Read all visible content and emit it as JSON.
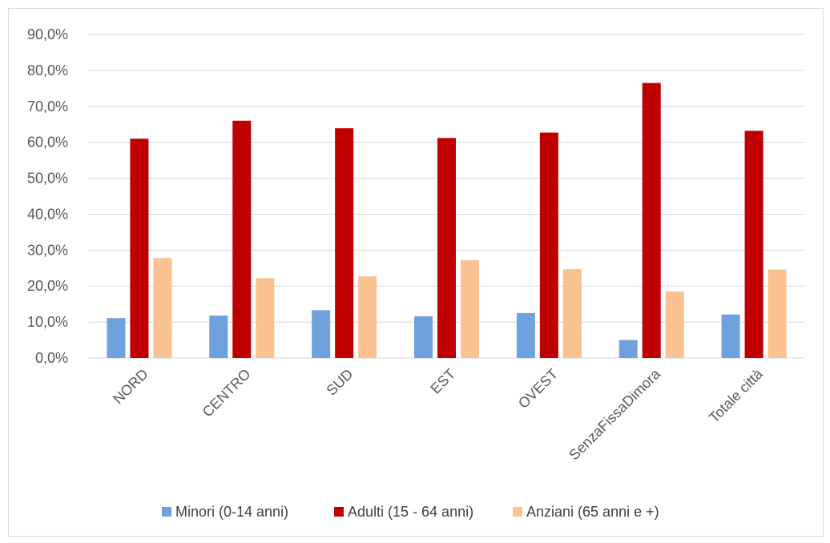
{
  "chart_data": {
    "type": "bar",
    "title": "",
    "xlabel": "",
    "ylabel": "",
    "categories": [
      "NORD",
      "CENTRO",
      "SUD",
      "EST",
      "OVEST",
      "SenzaFissaDimora",
      "Totale città"
    ],
    "series": [
      {
        "name": "Minori (0-14 anni)",
        "color": "#6fa1de",
        "values": [
          11.1,
          11.8,
          13.3,
          11.6,
          12.5,
          5.0,
          12.1
        ]
      },
      {
        "name": "Adulti (15 - 64 anni)",
        "color": "#c00000",
        "values": [
          61.0,
          66.0,
          63.9,
          61.2,
          62.7,
          76.5,
          63.2
        ]
      },
      {
        "name": "Anziani (65 anni e +)",
        "color": "#f8c291",
        "values": [
          27.8,
          22.2,
          22.7,
          27.2,
          24.7,
          18.5,
          24.6
        ]
      }
    ],
    "ylim": [
      0,
      90
    ],
    "ytick_values": [
      0,
      10,
      20,
      30,
      40,
      50,
      60,
      70,
      80,
      90
    ],
    "ytick_labels": [
      "0,0%",
      "10,0%",
      "20,0%",
      "30,0%",
      "40,0%",
      "50,0%",
      "60,0%",
      "70,0%",
      "80,0%",
      "90,0%"
    ],
    "grid": true,
    "legend_position": "bottom",
    "gridline_color": "#d9d9d9"
  }
}
